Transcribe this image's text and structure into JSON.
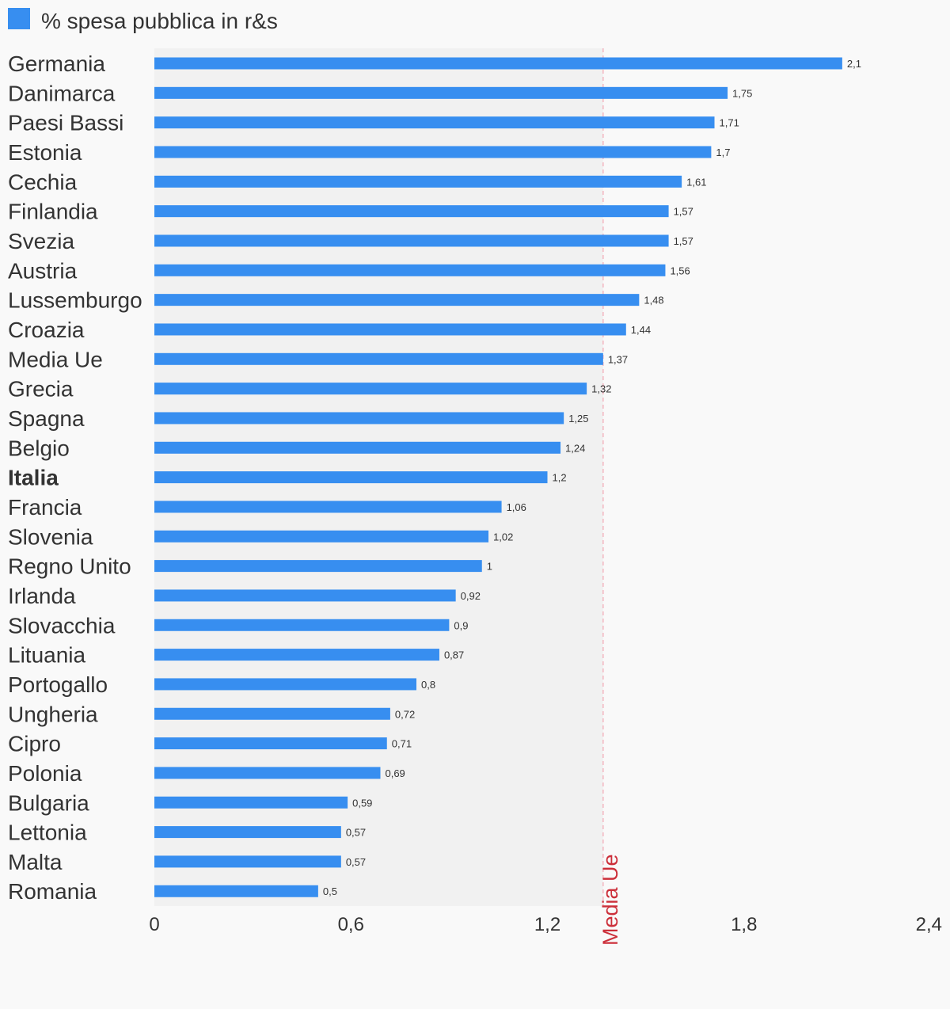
{
  "chart_data": {
    "type": "bar",
    "orientation": "horizontal",
    "legend": {
      "label": "% spesa pubblica in r&s",
      "color": "#378ef0",
      "position": "top-left"
    },
    "series": [
      {
        "name": "% spesa pubblica in r&s",
        "color": "#378ef0"
      }
    ],
    "categories": [
      "Germania",
      "Danimarca",
      "Paesi Bassi",
      "Estonia",
      "Cechia",
      "Finlandia",
      "Svezia",
      "Austria",
      "Lussemburgo",
      "Croazia",
      "Media Ue",
      "Grecia",
      "Spagna",
      "Belgio",
      "Italia",
      "Francia",
      "Slovenia",
      "Regno Unito",
      "Irlanda",
      "Slovacchia",
      "Lituania",
      "Portogallo",
      "Ungheria",
      "Cipro",
      "Polonia",
      "Bulgaria",
      "Lettonia",
      "Malta",
      "Romania"
    ],
    "values": [
      2.1,
      1.75,
      1.71,
      1.7,
      1.61,
      1.57,
      1.57,
      1.56,
      1.48,
      1.44,
      1.37,
      1.32,
      1.25,
      1.24,
      1.2,
      1.06,
      1.02,
      1,
      0.92,
      0.9,
      0.87,
      0.8,
      0.72,
      0.71,
      0.69,
      0.59,
      0.57,
      0.57,
      0.5
    ],
    "value_labels": [
      "2,1",
      "1,75",
      "1,71",
      "1,7",
      "1,61",
      "1,57",
      "1,57",
      "1,56",
      "1,48",
      "1,44",
      "1,37",
      "1,32",
      "1,25",
      "1,24",
      "1,2",
      "1,06",
      "1,02",
      "1",
      "0,92",
      "0,9",
      "0,87",
      "0,8",
      "0,72",
      "0,71",
      "0,69",
      "0,59",
      "0,57",
      "0,57",
      "0,5"
    ],
    "highlight_category": "Italia",
    "xlim": [
      0,
      2.4
    ],
    "x_ticks": [
      0,
      0.6,
      1.2,
      1.8,
      2.4
    ],
    "x_tick_labels": [
      "0",
      "0,6",
      "1,2",
      "1,8",
      "2,4"
    ],
    "reference_line": {
      "value": 1.37,
      "label": "Media Ue",
      "color": "#cc2f3a"
    },
    "shaded_region": {
      "from": 0,
      "to": 1.37,
      "color": "#f1f1f1"
    },
    "grid": false,
    "xlabel": "",
    "ylabel": ""
  }
}
